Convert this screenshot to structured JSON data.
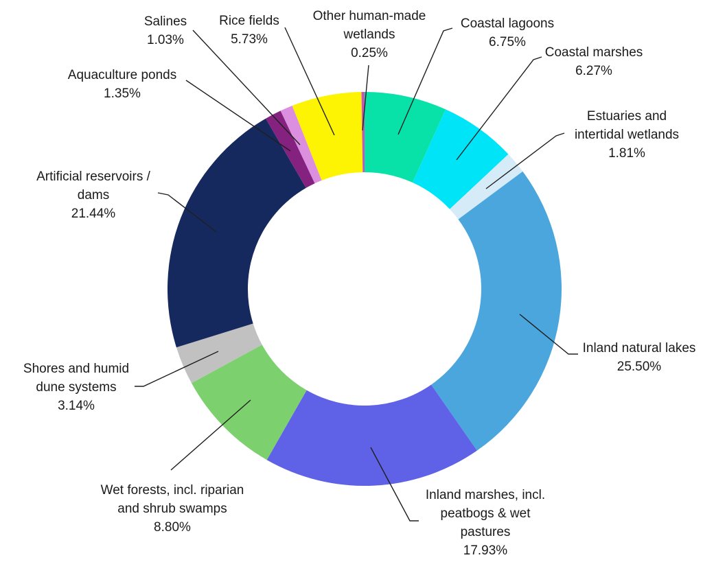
{
  "page": {
    "background": "#ffffff"
  },
  "chart_data": {
    "type": "pie",
    "subtype": "donut",
    "title": "",
    "xlabel": "",
    "ylabel": "",
    "unit": "%",
    "start_angle_deg": 0,
    "direction": "clockwise",
    "legend_position": "none",
    "grid": false,
    "data_label_style": "category name and percentage outside the ring with leader lines",
    "text_color": "#1a1a1a",
    "leader_line_color": "#1f1f1f",
    "segments": [
      {
        "id": "coastal-lagoons",
        "label_lines": [
          "Coastal lagoons"
        ],
        "value": 6.75,
        "pct_label": "6.75%",
        "color": "#08E2A9"
      },
      {
        "id": "coastal-marshes",
        "label_lines": [
          "Coastal marshes"
        ],
        "value": 6.27,
        "pct_label": "6.27%",
        "color": "#00E4F8"
      },
      {
        "id": "estuaries-intertidal-wetlands",
        "label_lines": [
          "Estuaries and",
          "intertidal wetlands"
        ],
        "value": 1.81,
        "pct_label": "1.81%",
        "color": "#D5EBF8"
      },
      {
        "id": "inland-natural-lakes",
        "label_lines": [
          "Inland natural lakes"
        ],
        "value": 25.5,
        "pct_label": "25.50%",
        "color": "#4AA6DC"
      },
      {
        "id": "inland-marshes",
        "label_lines": [
          "Inland marshes, incl.",
          "peatbogs & wet",
          "pastures"
        ],
        "value": 17.93,
        "pct_label": "17.93%",
        "color": "#5F62E6"
      },
      {
        "id": "wet-forests",
        "label_lines": [
          "Wet forests, incl. riparian",
          "and shrub swamps"
        ],
        "value": 8.8,
        "pct_label": "8.80%",
        "color": "#7DD06E"
      },
      {
        "id": "shores-humid-dune-systems",
        "label_lines": [
          "Shores and humid",
          "dune systems"
        ],
        "value": 3.14,
        "pct_label": "3.14%",
        "color": "#C1C1C1"
      },
      {
        "id": "artificial-reservoirs-dams",
        "label_lines": [
          "Artificial reservoirs /",
          "dams"
        ],
        "value": 21.44,
        "pct_label": "21.44%",
        "color": "#16295E"
      },
      {
        "id": "aquaculture-ponds",
        "label_lines": [
          "Aquaculture ponds"
        ],
        "value": 1.35,
        "pct_label": "1.35%",
        "color": "#85217E"
      },
      {
        "id": "salines",
        "label_lines": [
          "Salines"
        ],
        "value": 1.03,
        "pct_label": "1.03%",
        "color": "#DC8FDF"
      },
      {
        "id": "rice-fields",
        "label_lines": [
          "Rice fields"
        ],
        "value": 5.73,
        "pct_label": "5.73%",
        "color": "#FCF403"
      },
      {
        "id": "other-human-made-wetlands",
        "label_lines": [
          "Other human-made",
          "wetlands"
        ],
        "value": 0.25,
        "pct_label": "0.25%",
        "color": "#C957B9"
      }
    ]
  }
}
